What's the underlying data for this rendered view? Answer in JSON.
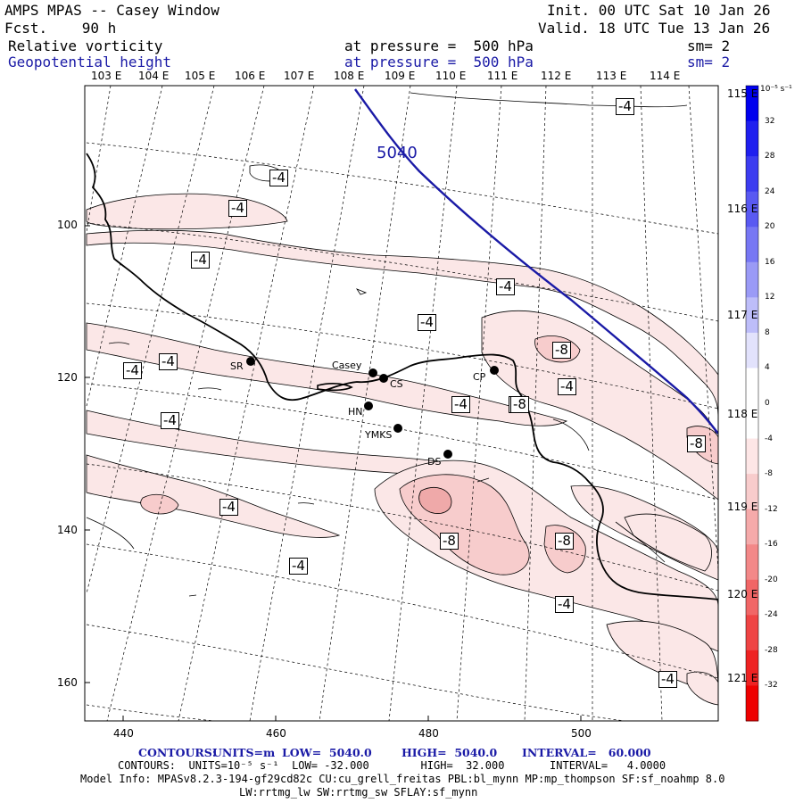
{
  "header": {
    "model": "AMPS MPAS -- Casey Window",
    "forecast": "Fcst.    90 h",
    "init": "Init. 00 UTC Sat 10 Jan 26",
    "valid": "Valid. 18 UTC Tue 13 Jan 26",
    "field1_name": "Relative vorticity",
    "field1_level": "at pressure =  500 hPa",
    "field1_sm": "sm= 2",
    "field2_name": "Geopotential height",
    "field2_level": "at pressure =  500 hPa",
    "field2_sm": "sm= 2"
  },
  "colors": {
    "height_contour": "#1a1aa6",
    "coast": "#000000",
    "pos_light": "#fbe7e7",
    "pos_mid": "#f7cccc",
    "pos_dark": "#efa9a9"
  },
  "axes": {
    "top_lon": [
      "103 E",
      "104 E",
      "105 E",
      "106 E",
      "107 E",
      "108 E",
      "109 E",
      "110 E",
      "111 E",
      "112 E",
      "113 E",
      "114 E"
    ],
    "right_lon": [
      "115 E",
      "116 E",
      "117 E",
      "118 E",
      "119 E",
      "120 E",
      "121 E"
    ],
    "left_y": [
      "100",
      "120",
      "140",
      "160"
    ],
    "bottom_x": [
      "440",
      "460",
      "480",
      "500"
    ]
  },
  "colorbar": {
    "unit": "10⁻⁵ s⁻¹",
    "labels": [
      "32",
      "28",
      "24",
      "20",
      "16",
      "12",
      "8",
      "4",
      "0",
      "-4",
      "-8",
      "-12",
      "-16",
      "-20",
      "-24",
      "-28",
      "-32"
    ],
    "colors": [
      "#0000ee",
      "#1f1fef",
      "#3c3cf0",
      "#5959f2",
      "#7777f4",
      "#9a9af6",
      "#bdbdf9",
      "#e2e2fc",
      "#ffffff",
      "#ffffff",
      "#fde6e6",
      "#f8cccc",
      "#f5aaaa",
      "#f38888",
      "#f16666",
      "#ef4444",
      "#ee2222",
      "#ee0000"
    ]
  },
  "height_label": "5040",
  "vort_labels": [
    "-4",
    "-4",
    "-4",
    "-4",
    "-4",
    "-4",
    "-4",
    "-4",
    "-4",
    "-4",
    "-4",
    "-4",
    "-4",
    "-4",
    "-4",
    "-4",
    "-8",
    "-8",
    "-8",
    "-8",
    "-8",
    "-4",
    "-4",
    "-4"
  ],
  "stations": [
    {
      "name": "SR"
    },
    {
      "name": "Casey"
    },
    {
      "name": "CS"
    },
    {
      "name": "CP"
    },
    {
      "name": "HN"
    },
    {
      "name": "YMKS"
    },
    {
      "name": "DS"
    }
  ],
  "footer": {
    "c1_label": "CONTOURS:",
    "c1_units": "UNITS=m",
    "c1_low": "LOW=  5040.0",
    "c1_high": "HIGH=  5040.0",
    "c1_int": "INTERVAL=   60.000",
    "c2": "CONTOURS:  UNITS=10⁻⁵ s⁻¹  LOW= -32.000        HIGH=  32.000       INTERVAL=   4.0000",
    "model_info": "Model Info: MPASv8.2.3-194-gf29cd82c CU:cu_grell_freitas PBL:bl_mynn MP:mp_thompson SF:sf_noahmp 8.0",
    "model_info2": "LW:rrtmg_lw SW:rrtmg_sw SFLAY:sf_mynn"
  }
}
